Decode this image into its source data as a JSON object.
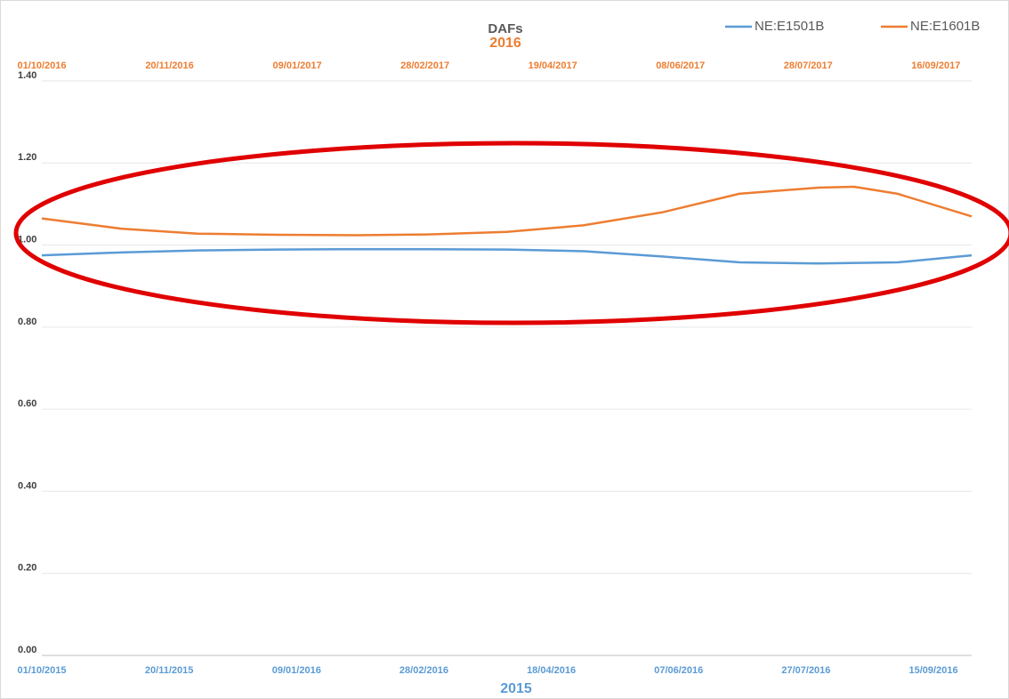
{
  "chart_data": {
    "type": "line",
    "title": "DAFs",
    "x_label": "2015",
    "x2_label": "2016",
    "xlim": [
      "2015-10-01",
      "2016-09-30"
    ],
    "xticks": [
      {
        "value": "2015-10-01",
        "label": "01/10/2015"
      },
      {
        "value": "2015-11-20",
        "label": "20/11/2015"
      },
      {
        "value": "2016-01-09",
        "label": "09/01/2016"
      },
      {
        "value": "2016-02-28",
        "label": "28/02/2016"
      },
      {
        "value": "2016-04-18",
        "label": "18/04/2016"
      },
      {
        "value": "2016-06-07",
        "label": "07/06/2016"
      },
      {
        "value": "2016-07-27",
        "label": "27/07/2016"
      },
      {
        "value": "2016-09-15",
        "label": "15/09/2016"
      }
    ],
    "x2lim": [
      "2016-10-01",
      "2017-09-30"
    ],
    "x2ticks": [
      {
        "value": "2016-10-01",
        "label": "01/10/2016"
      },
      {
        "value": "2016-11-20",
        "label": "20/11/2016"
      },
      {
        "value": "2017-01-09",
        "label": "09/01/2017"
      },
      {
        "value": "2017-02-28",
        "label": "28/02/2017"
      },
      {
        "value": "2017-04-19",
        "label": "19/04/2017"
      },
      {
        "value": "2017-06-08",
        "label": "08/06/2017"
      },
      {
        "value": "2017-07-28",
        "label": "28/07/2017"
      },
      {
        "value": "2017-09-16",
        "label": "16/09/2017"
      }
    ],
    "ylim": [
      0,
      1.4
    ],
    "yticks": [
      {
        "value": 0,
        "label": "0.00"
      },
      {
        "value": 0.2,
        "label": "0.20"
      },
      {
        "value": 0.4,
        "label": "0.40"
      },
      {
        "value": 0.6,
        "label": "0.60"
      },
      {
        "value": 0.8,
        "label": "0.80"
      },
      {
        "value": 1.0,
        "label": "1.00"
      },
      {
        "value": 1.2,
        "label": "1.20"
      },
      {
        "value": 1.4,
        "label": "1.40"
      }
    ],
    "grid": true,
    "legend": "top-right",
    "series": [
      {
        "name": "NE:E1501B",
        "color": "#5b9bd5",
        "axis": "x",
        "x": [
          "2015-10-01",
          "2015-11-01",
          "2015-12-01",
          "2016-01-01",
          "2016-02-01",
          "2016-03-01",
          "2016-04-01",
          "2016-05-01",
          "2016-06-01",
          "2016-07-01",
          "2016-08-01",
          "2016-09-01",
          "2016-09-30"
        ],
        "values": [
          0.975,
          0.982,
          0.987,
          0.989,
          0.99,
          0.99,
          0.989,
          0.985,
          0.972,
          0.958,
          0.955,
          0.958,
          0.975
        ]
      },
      {
        "name": "NE:E1601B",
        "color": "#ed7d31",
        "axis": "x2",
        "x": [
          "2016-10-01",
          "2016-11-01",
          "2016-12-01",
          "2017-01-01",
          "2017-02-01",
          "2017-03-01",
          "2017-04-01",
          "2017-05-01",
          "2017-06-01",
          "2017-07-01",
          "2017-08-01",
          "2017-08-15",
          "2017-09-01",
          "2017-09-30"
        ],
        "values": [
          1.065,
          1.04,
          1.028,
          1.025,
          1.024,
          1.026,
          1.032,
          1.048,
          1.08,
          1.125,
          1.14,
          1.142,
          1.125,
          1.07
        ]
      }
    ]
  }
}
